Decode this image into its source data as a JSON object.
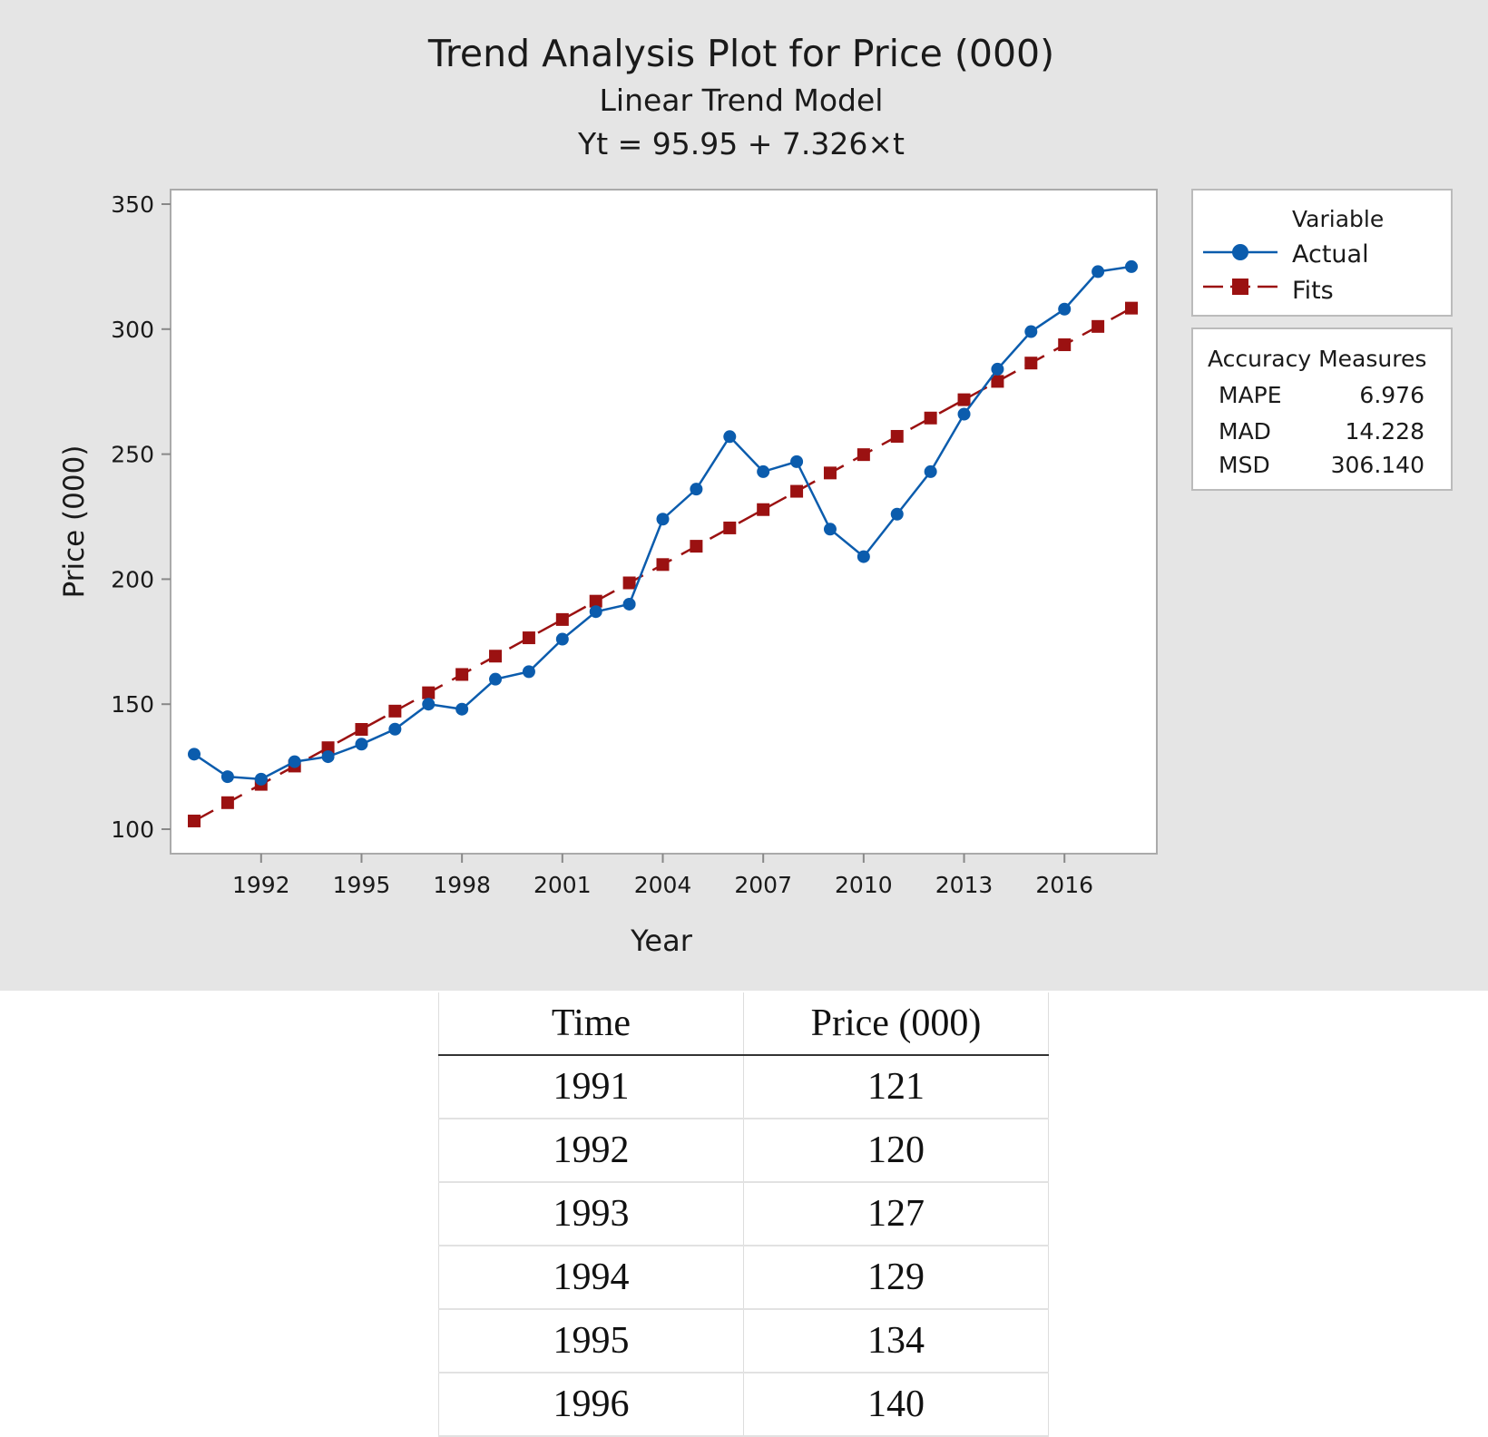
{
  "chart_data": {
    "type": "line",
    "title": "Trend Analysis Plot for Price (000)",
    "subtitle": "Linear Trend Model",
    "equation": "Yt = 95.95 + 7.326×t",
    "xlabel": "Year",
    "ylabel": "Price (000)",
    "xlim": [
      1990,
      2018
    ],
    "ylim": [
      100,
      350
    ],
    "x_ticks": [
      "1992",
      "1995",
      "1998",
      "2001",
      "2004",
      "2007",
      "2010",
      "2013",
      "2016"
    ],
    "y_ticks": [
      "100",
      "150",
      "200",
      "250",
      "300",
      "350"
    ],
    "grid": false,
    "legend_title": "Variable",
    "legend_position": "right",
    "x": [
      1990,
      1991,
      1992,
      1993,
      1994,
      1995,
      1996,
      1997,
      1998,
      1999,
      2000,
      2001,
      2002,
      2003,
      2004,
      2005,
      2006,
      2007,
      2008,
      2009,
      2010,
      2011,
      2012,
      2013,
      2014,
      2015,
      2016,
      2017,
      2018
    ],
    "series": [
      {
        "name": "Actual",
        "color": "#0b5cad",
        "marker": "circle",
        "values": [
          130,
          121,
          120,
          127,
          129,
          134,
          140,
          150,
          148,
          160,
          163,
          176,
          187,
          190,
          224,
          236,
          257,
          243,
          247,
          220,
          209,
          226,
          243,
          266,
          284,
          299,
          308,
          323,
          325
        ]
      },
      {
        "name": "Fits",
        "color": "#9b1111",
        "marker": "square",
        "style": "dashed",
        "values": [
          103.28,
          110.6,
          117.93,
          125.25,
          132.58,
          139.91,
          147.23,
          154.56,
          161.88,
          169.21,
          176.54,
          183.86,
          191.19,
          198.51,
          205.84,
          213.17,
          220.49,
          227.82,
          235.14,
          242.47,
          249.8,
          257.12,
          264.45,
          271.77,
          279.1,
          286.43,
          293.75,
          301.08,
          308.4
        ]
      }
    ],
    "accuracy": {
      "title": "Accuracy Measures",
      "rows": [
        {
          "label": "MAPE",
          "value": "6.976"
        },
        {
          "label": "MAD",
          "value": "14.228"
        },
        {
          "label": "MSD",
          "value": "306.140"
        }
      ]
    }
  },
  "table": {
    "headers": [
      "Time",
      "Price (000)"
    ],
    "rows": [
      [
        "1991",
        "121"
      ],
      [
        "1992",
        "120"
      ],
      [
        "1993",
        "127"
      ],
      [
        "1994",
        "129"
      ],
      [
        "1995",
        "134"
      ],
      [
        "1996",
        "140"
      ]
    ]
  }
}
